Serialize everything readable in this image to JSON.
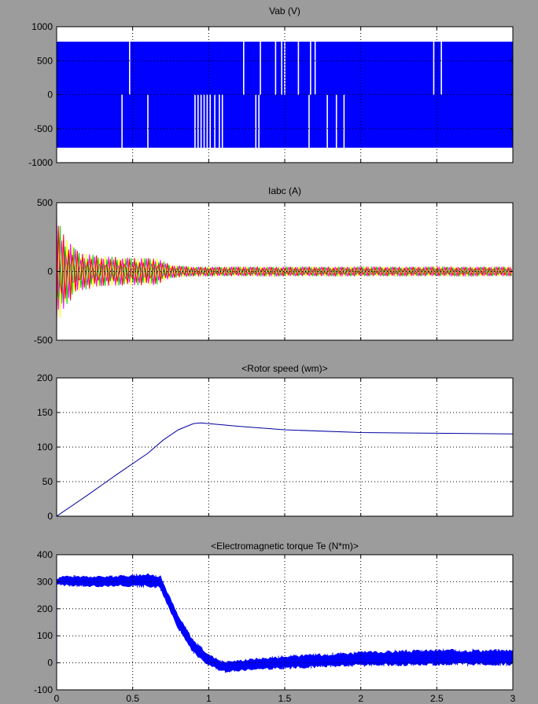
{
  "window": {
    "background": "#9c9c9c",
    "axes_background": "#ffffff",
    "signal_color": "#0000ff"
  },
  "chart_data": [
    {
      "type": "line",
      "title": "Vab (V)",
      "xlim": [
        0,
        3
      ],
      "ylim": [
        -1000,
        1000
      ],
      "yticks": [
        1000,
        500,
        0,
        -500,
        -1000
      ],
      "ytick_labels": [
        "1000",
        "500",
        "0",
        "-500",
        "-1000"
      ],
      "xticks": [
        0,
        0.5,
        1,
        1.5,
        2,
        2.5,
        3
      ],
      "grid": "dotted",
      "series": [
        {
          "color": "#0000ff",
          "style": "pwm-band",
          "upper": 780,
          "lower": -780,
          "gaps_upper": [
            0.48,
            1.23,
            1.34,
            1.44,
            1.48,
            1.5,
            1.59,
            1.67,
            1.7,
            2.48,
            2.53
          ],
          "gaps_lower": [
            0.43,
            0.6,
            0.91,
            0.93,
            0.95,
            0.97,
            0.99,
            1.01,
            1.04,
            1.07,
            1.09,
            1.31,
            1.33,
            1.66,
            1.78,
            1.84,
            1.89
          ]
        }
      ]
    },
    {
      "type": "line",
      "title": "Iabc (A)",
      "xlim": [
        0,
        3
      ],
      "ylim": [
        -500,
        500
      ],
      "yticks": [
        500,
        0,
        -500
      ],
      "ytick_labels": [
        "500",
        "0",
        "-500"
      ],
      "xticks": [
        0,
        0.5,
        1,
        1.5,
        2,
        2.5,
        3
      ],
      "grid": "dotted",
      "series": [
        {
          "color": "#ffff00",
          "style": "oscillation"
        },
        {
          "color": "#ff00ff",
          "style": "oscillation"
        },
        {
          "color": "#00d000",
          "style": "oscillation"
        },
        {
          "color": "#ff0000",
          "style": "oscillation"
        }
      ],
      "envelope": {
        "x": [
          0,
          0.05,
          0.15,
          0.3,
          0.5,
          0.65,
          0.75,
          0.9,
          3
        ],
        "amplitude": [
          400,
          260,
          140,
          110,
          100,
          100,
          50,
          35,
          35
        ]
      }
    },
    {
      "type": "line",
      "title": "<Rotor speed (wm)>",
      "xlim": [
        0,
        3
      ],
      "ylim": [
        0,
        200
      ],
      "yticks": [
        200,
        150,
        100,
        50,
        0
      ],
      "ytick_labels": [
        "200",
        "150",
        "100",
        "50",
        "0"
      ],
      "xticks": [
        0,
        0.5,
        1,
        1.5,
        2,
        2.5,
        3
      ],
      "grid": "dotted",
      "series": [
        {
          "color": "#0000a0",
          "x": [
            0,
            0.2,
            0.4,
            0.6,
            0.7,
            0.8,
            0.9,
            0.95,
            1.0,
            1.2,
            1.5,
            2.0,
            2.5,
            3.0
          ],
          "y": [
            0,
            30,
            61,
            91,
            110,
            125,
            134,
            135,
            134,
            130,
            125,
            121,
            120,
            119
          ]
        }
      ]
    },
    {
      "type": "line",
      "title": "<Electromagnetic torque Te (N*m)>",
      "xlim": [
        0,
        3
      ],
      "ylim": [
        -100,
        400
      ],
      "yticks": [
        400,
        300,
        200,
        100,
        0,
        -100
      ],
      "ytick_labels": [
        "400",
        "300",
        "200",
        "100",
        "0",
        "-100"
      ],
      "xticks": [
        0,
        0.5,
        1,
        1.5,
        2,
        2.5,
        3
      ],
      "xtick_labels": [
        "0",
        "0.5",
        "1",
        "1.5",
        "2",
        "2.5",
        "3"
      ],
      "grid": "dotted",
      "series": [
        {
          "color": "#0000ff",
          "style": "noisy-band",
          "x": [
            0,
            0.05,
            0.2,
            0.4,
            0.6,
            0.68,
            0.72,
            0.8,
            0.9,
            1.0,
            1.1,
            1.3,
            1.6,
            2.0,
            2.5,
            3.0
          ],
          "y": [
            300,
            305,
            300,
            303,
            305,
            300,
            250,
            150,
            60,
            10,
            -15,
            -5,
            5,
            15,
            20,
            20
          ],
          "band": [
            10,
            20,
            20,
            20,
            25,
            25,
            25,
            25,
            25,
            22,
            20,
            22,
            25,
            27,
            30,
            30
          ]
        }
      ]
    }
  ]
}
